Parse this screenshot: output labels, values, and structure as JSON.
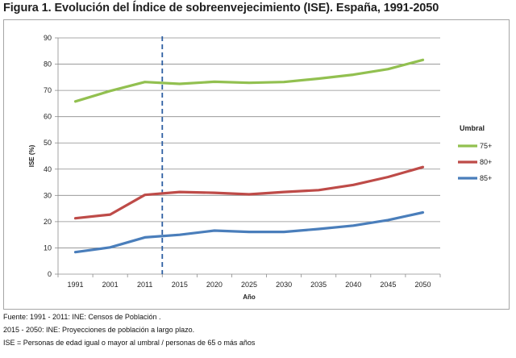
{
  "figure": {
    "title": "Figura 1. Evolución del Índice de sobreenvejecimiento (ISE). España, 1991-2050"
  },
  "footnotes": [
    "Fuente: 1991 - 2011: INE: Censos de Población .",
    "2015 - 2050: INE: Proyecciones de población a largo plazo.",
    "ISE = Personas de edad igual o mayor al umbral / personas de 65 o más años"
  ],
  "chart_data": {
    "type": "line",
    "title": "",
    "xlabel": "Año",
    "ylabel": "ISE (%)",
    "categories": [
      "1991",
      "2001",
      "2011",
      "2015",
      "2020",
      "2025",
      "2030",
      "2035",
      "2040",
      "2045",
      "2050"
    ],
    "ylim": [
      0,
      90
    ],
    "yticks": [
      0,
      10,
      20,
      30,
      40,
      50,
      60,
      70,
      80,
      90
    ],
    "grid": true,
    "divider": {
      "between": [
        "2011",
        "2015"
      ],
      "style": "dashed",
      "color": "#2e5fa3"
    },
    "legend": {
      "title": "Umbral",
      "placement": "right"
    },
    "series": [
      {
        "name": "75+",
        "color": "#92c050",
        "values": [
          65.8,
          69.8,
          73.2,
          72.5,
          73.3,
          72.9,
          73.2,
          74.5,
          76.0,
          78.1,
          81.6
        ]
      },
      {
        "name": "80+",
        "color": "#be4b48",
        "values": [
          21.3,
          22.7,
          30.2,
          31.3,
          31.0,
          30.4,
          31.3,
          32.0,
          34.0,
          37.0,
          40.8
        ]
      },
      {
        "name": "85+",
        "color": "#4a7ebb",
        "values": [
          8.4,
          10.2,
          14.0,
          15.0,
          16.6,
          16.1,
          16.1,
          17.2,
          18.5,
          20.6,
          23.5
        ]
      }
    ]
  }
}
